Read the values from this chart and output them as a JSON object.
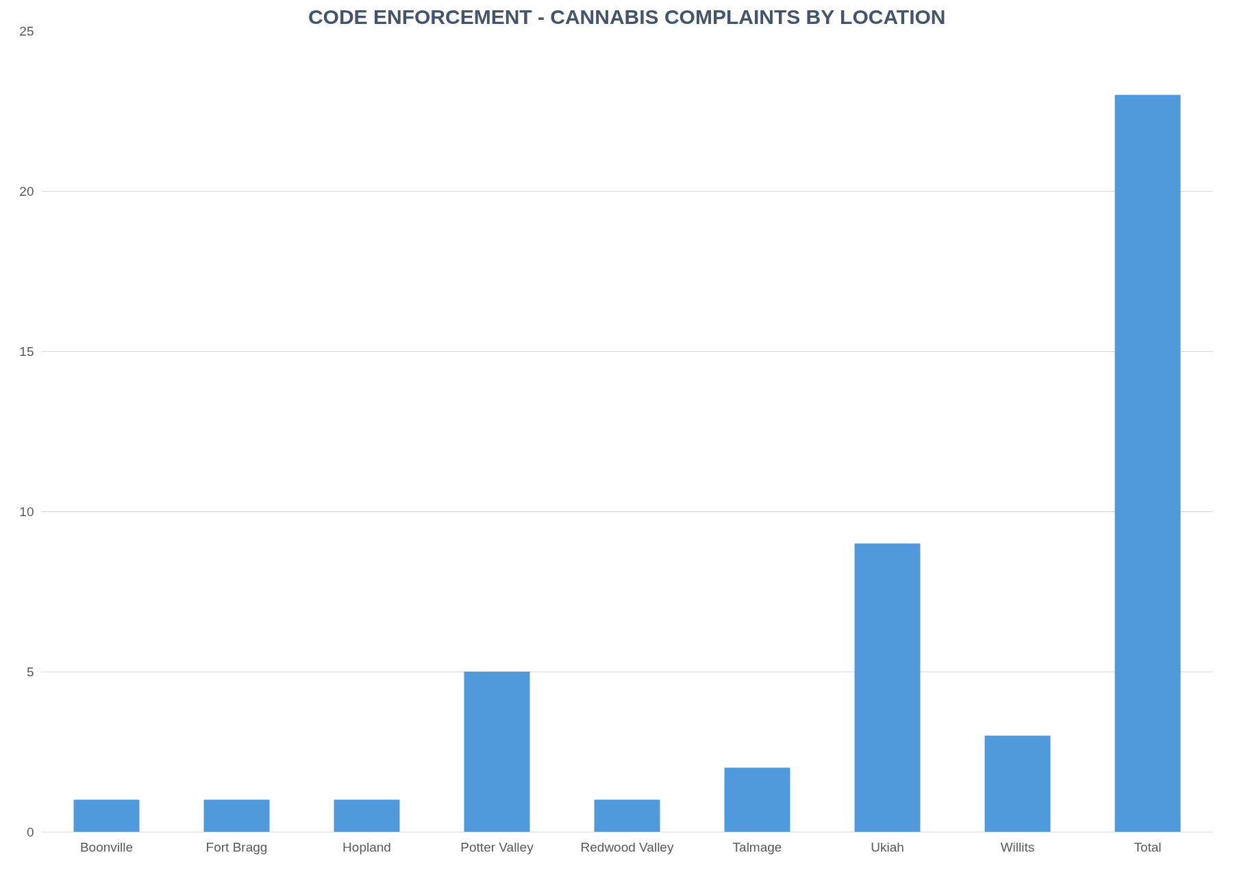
{
  "chart_data": {
    "type": "bar",
    "title": "CODE ENFORCEMENT - CANNABIS COMPLAINTS BY LOCATION",
    "categories": [
      "Boonville",
      "Fort Bragg",
      "Hopland",
      "Potter Valley",
      "Redwood Valley",
      "Talmage",
      "Ukiah",
      "Willits",
      "Total"
    ],
    "values": [
      1,
      1,
      1,
      5,
      1,
      2,
      9,
      3,
      23
    ],
    "color": "#5099db",
    "ylim": [
      0,
      25
    ],
    "yticks": [
      0,
      5,
      10,
      15,
      20,
      25
    ],
    "grid": "y"
  }
}
